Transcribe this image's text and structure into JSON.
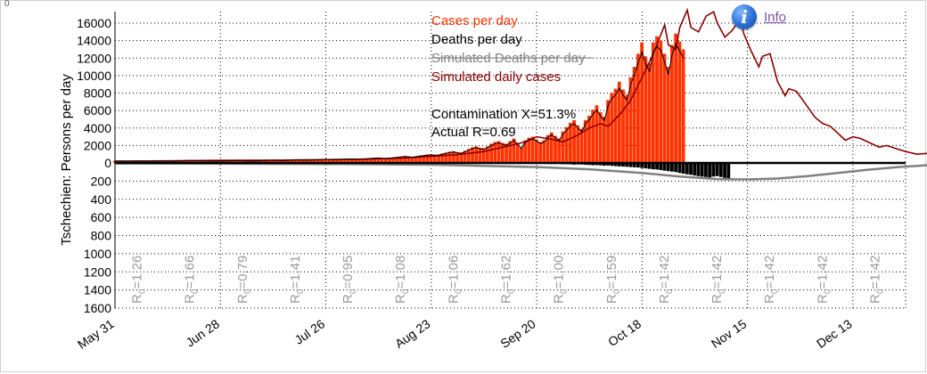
{
  "corner_mark": "0",
  "info": {
    "label": "Info"
  },
  "colors": {
    "cases": "#ff3300",
    "deaths": "#000000",
    "simulated_deaths": "#808080",
    "simulated_cases": "#8b0000",
    "r_label": "#9a9a9a",
    "grid": "#000000"
  },
  "chart_data": {
    "type": "bar",
    "ylabel": "Tschechien: Persons per day",
    "y_upper_ticks": [
      16000,
      14000,
      12000,
      10000,
      8000,
      6000,
      4000,
      2000,
      0
    ],
    "y_lower_ticks": [
      200,
      400,
      600,
      800,
      1000,
      1200,
      1400,
      1600
    ],
    "ylim_upper": [
      0,
      16000
    ],
    "ylim_lower": [
      0,
      1600
    ],
    "x_day_range": [
      0,
      210
    ],
    "x_ticks": [
      {
        "day": 0,
        "label": "May 31"
      },
      {
        "day": 28,
        "label": "Jun 28"
      },
      {
        "day": 56,
        "label": "Jul 26"
      },
      {
        "day": 84,
        "label": "Aug 23"
      },
      {
        "day": 112,
        "label": "Sep 20"
      },
      {
        "day": 140,
        "label": "Oct 18"
      },
      {
        "day": 168,
        "label": "Nov 15"
      },
      {
        "day": 196,
        "label": "Dec 13"
      }
    ],
    "legend": [
      {
        "key": "cases",
        "label": "Cases per day"
      },
      {
        "key": "deaths",
        "label": "Deaths per day"
      },
      {
        "key": "simulated_deaths",
        "label": "Simulated Deaths per day"
      },
      {
        "key": "simulated_cases",
        "label": "Simulated daily cases"
      }
    ],
    "annotations": [
      "Contamination X=51.3%",
      "Actual R=0.69"
    ],
    "r_labels": [
      {
        "day": 7,
        "value": "1.26"
      },
      {
        "day": 21,
        "value": "1.66"
      },
      {
        "day": 35,
        "value": "0.79"
      },
      {
        "day": 49,
        "value": "1.41"
      },
      {
        "day": 63,
        "value": "0.95"
      },
      {
        "day": 77,
        "value": "1.08"
      },
      {
        "day": 91,
        "value": "1.06"
      },
      {
        "day": 105,
        "value": "1.62"
      },
      {
        "day": 119,
        "value": "1.00"
      },
      {
        "day": 133,
        "value": "1.59"
      },
      {
        "day": 147,
        "value": "1.42"
      },
      {
        "day": 161,
        "value": "1.42"
      },
      {
        "day": 175,
        "value": "1.42"
      },
      {
        "day": 189,
        "value": "1.42"
      },
      {
        "day": 203,
        "value": "1.42"
      },
      {
        "day": 217,
        "value": "1.42"
      },
      {
        "day": 231,
        "value": "1.42"
      }
    ],
    "r_prefix": "R",
    "r_sub": "0",
    "cases_start_day": 0,
    "cases": [
      240,
      230,
      250,
      220,
      230,
      240,
      260,
      250,
      230,
      220,
      240,
      250,
      260,
      240,
      230,
      220,
      250,
      270,
      280,
      300,
      310,
      290,
      280,
      270,
      260,
      250,
      240,
      230,
      250,
      260,
      270,
      280,
      290,
      300,
      270,
      260,
      250,
      240,
      260,
      280,
      300,
      330,
      350,
      320,
      300,
      310,
      330,
      360,
      380,
      400,
      370,
      350,
      360,
      380,
      400,
      430,
      450,
      420,
      400,
      420,
      440,
      460,
      480,
      500,
      470,
      450,
      480,
      520,
      560,
      600,
      620,
      580,
      560,
      600,
      650,
      700,
      750,
      800,
      760,
      720,
      780,
      850,
      900,
      980,
      1000,
      950,
      980,
      1100,
      1200,
      1300,
      1350,
      1250,
      1200,
      1400,
      1600,
      1800,
      1900,
      1750,
      1700,
      1900,
      2200,
      2400,
      2500,
      2300,
      2200,
      2500,
      2800,
      2300,
      1800,
      2600,
      2900,
      3000,
      2700,
      2400,
      2600,
      3200,
      3500,
      3100,
      2800,
      3600,
      4100,
      4600,
      4900,
      4300,
      3900,
      4900,
      5400,
      6100,
      6600,
      5800,
      5300,
      7200,
      8000,
      8500,
      9300,
      8400,
      7800,
      9800,
      11000,
      12500,
      13800,
      12200,
      11400,
      13800,
      14500,
      14000,
      12500,
      11000,
      13500,
      14800,
      13900,
      13000
    ],
    "deaths_start_day": 112,
    "deaths": [
      8,
      9,
      7,
      10,
      11,
      12,
      9,
      13,
      14,
      15,
      18,
      16,
      17,
      20,
      22,
      25,
      24,
      26,
      30,
      28,
      32,
      35,
      38,
      40,
      42,
      45,
      48,
      50,
      55,
      60,
      65,
      70,
      72,
      78,
      85,
      90,
      95,
      100,
      110,
      118,
      125,
      130,
      138,
      145,
      150,
      155,
      160,
      150,
      145,
      155,
      165,
      175
    ],
    "simulated_cases": [
      [
        0,
        200
      ],
      [
        14,
        230
      ],
      [
        28,
        300
      ],
      [
        42,
        320
      ],
      [
        56,
        380
      ],
      [
        63,
        420
      ],
      [
        70,
        480
      ],
      [
        77,
        560
      ],
      [
        84,
        750
      ],
      [
        91,
        950
      ],
      [
        98,
        1300
      ],
      [
        105,
        2000
      ],
      [
        109,
        2400
      ],
      [
        112,
        3000
      ],
      [
        116,
        2700
      ],
      [
        119,
        2400
      ],
      [
        123,
        3200
      ],
      [
        126,
        4000
      ],
      [
        129,
        4500
      ],
      [
        131,
        4200
      ],
      [
        134,
        5500
      ],
      [
        137,
        7200
      ],
      [
        140,
        9800
      ],
      [
        143,
        12500
      ],
      [
        146,
        15800
      ],
      [
        147,
        13500
      ],
      [
        149,
        13000
      ],
      [
        150,
        15500
      ],
      [
        152,
        17500
      ],
      [
        153,
        15500
      ],
      [
        155,
        15000
      ],
      [
        157,
        16800
      ],
      [
        159,
        17300
      ],
      [
        160,
        16000
      ],
      [
        162,
        14400
      ],
      [
        164,
        15200
      ],
      [
        166,
        16500
      ],
      [
        167,
        14800
      ],
      [
        169,
        12800
      ],
      [
        171,
        11000
      ],
      [
        172,
        12200
      ],
      [
        174,
        12500
      ],
      [
        176,
        9300
      ],
      [
        178,
        7700
      ],
      [
        179,
        8500
      ],
      [
        181,
        8200
      ],
      [
        183,
        7000
      ],
      [
        186,
        5200
      ],
      [
        188,
        4500
      ],
      [
        190,
        4200
      ],
      [
        192,
        3400
      ],
      [
        194,
        2600
      ],
      [
        196,
        3000
      ],
      [
        198,
        2800
      ],
      [
        201,
        2200
      ],
      [
        203,
        1800
      ],
      [
        205,
        2000
      ],
      [
        207,
        1700
      ],
      [
        210,
        1300
      ],
      [
        213,
        1000
      ],
      [
        216,
        1100
      ],
      [
        220,
        900
      ],
      [
        224,
        700
      ],
      [
        228,
        400
      ]
    ],
    "simulated_deaths": [
      [
        0,
        5
      ],
      [
        28,
        8
      ],
      [
        56,
        12
      ],
      [
        84,
        20
      ],
      [
        112,
        45
      ],
      [
        126,
        70
      ],
      [
        140,
        110
      ],
      [
        150,
        150
      ],
      [
        160,
        178
      ],
      [
        168,
        182
      ],
      [
        176,
        172
      ],
      [
        184,
        145
      ],
      [
        192,
        110
      ],
      [
        200,
        75
      ],
      [
        208,
        45
      ],
      [
        216,
        25
      ],
      [
        224,
        15
      ],
      [
        232,
        10
      ]
    ]
  }
}
